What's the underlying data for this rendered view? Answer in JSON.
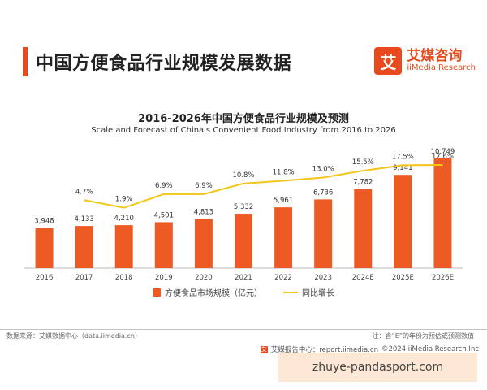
{
  "header": {
    "title": "中国方便食品行业规模发展数据",
    "logo_mark": "艾",
    "logo_cn": "艾媒咨询",
    "logo_en": "iiMedia Research"
  },
  "chart_data": {
    "type": "bar",
    "title": "2016-2026年中国方便食品行业规模及预测",
    "subtitle": "Scale and Forecast of China's Convenient Food Industry from 2016 to 2026",
    "categories": [
      "2016",
      "2017",
      "2018",
      "2019",
      "2020",
      "2021",
      "2022",
      "2023",
      "2024E",
      "2025E",
      "2026E"
    ],
    "series": [
      {
        "name": "方便食品市场规模（亿元）",
        "type": "bar",
        "color": "#ee5a24",
        "values": [
          3948,
          4133,
          4210,
          4501,
          4813,
          5332,
          5961,
          6736,
          7782,
          9141,
          10749
        ],
        "labels": [
          "3,948",
          "4,133",
          "4,210",
          "4,501",
          "4,813",
          "5,332",
          "5,961",
          "6,736",
          "7,782",
          "9,141",
          "10,749"
        ]
      },
      {
        "name": "同比增长",
        "type": "line",
        "color": "#f5c518",
        "values": [
          null,
          4.7,
          1.9,
          6.9,
          6.9,
          10.8,
          11.8,
          13.0,
          15.5,
          17.5,
          17.6
        ],
        "labels": [
          "",
          "4.7%",
          "1.9%",
          "6.9%",
          "6.9%",
          "10.8%",
          "11.8%",
          "13.0%",
          "15.5%",
          "17.5%",
          "17.6%"
        ]
      }
    ],
    "legend_position": "bottom",
    "grid": false
  },
  "footer": {
    "source": "数据来源：艾媒数据中心（data.iimedia.cn）",
    "note": "注：含“E”的年份为预估或预测数值",
    "report": "艾媒报告中心：report.iimedia.cn",
    "copyright": "©2024  iiMedia Research Inc",
    "footer_icon": "艾"
  },
  "watermark": "zhuye-pandasport.com"
}
